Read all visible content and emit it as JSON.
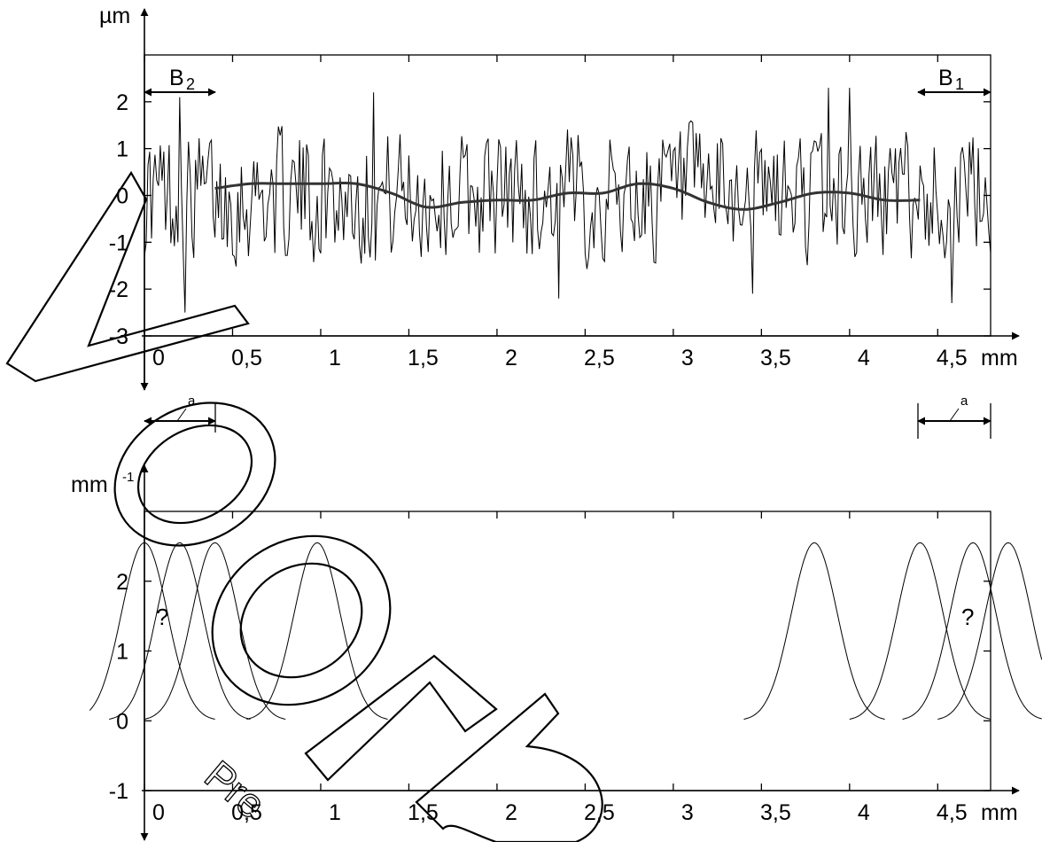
{
  "colors": {
    "ink": "#000000",
    "background": "#ffffff"
  },
  "watermark": {
    "text": "VorPreview",
    "style": "outlined-letters-diagonal"
  },
  "chart_data": [
    {
      "type": "line",
      "name": "surface-profile",
      "xlabel": "mm",
      "ylabel": "µm",
      "xlim": [
        0,
        4.8
      ],
      "ylim": [
        -3,
        3
      ],
      "x_ticks": [
        0,
        0.5,
        1,
        1.5,
        2,
        2.5,
        3,
        3.5,
        4,
        4.5
      ],
      "x_tick_labels": [
        "0",
        "0,5",
        "1",
        "1,5",
        "2",
        "2,5",
        "3",
        "3,5",
        "4",
        "4,5"
      ],
      "y_ticks": [
        -3,
        -2,
        -1,
        0,
        1,
        2
      ],
      "y_tick_labels": [
        "-3",
        "-2",
        "-1",
        "0",
        "1",
        "2"
      ],
      "profile": {
        "x_range": [
          0,
          4.8
        ],
        "sample_count": 480,
        "typical_amplitude": [
          -1.5,
          1.5
        ],
        "extreme_points": [
          {
            "x": 0.2,
            "y": 2.1
          },
          {
            "x": 0.23,
            "y": -2.5
          },
          {
            "x": 1.3,
            "y": 2.2
          },
          {
            "x": 2.35,
            "y": -2.2
          },
          {
            "x": 3.45,
            "y": -2.1
          },
          {
            "x": 3.88,
            "y": 2.3
          },
          {
            "x": 4.0,
            "y": 2.3
          },
          {
            "x": 4.58,
            "y": -2.3
          }
        ]
      },
      "mean_line": {
        "x": [
          0.4,
          0.6,
          0.8,
          1.0,
          1.2,
          1.4,
          1.6,
          1.8,
          2.0,
          2.2,
          2.4,
          2.6,
          2.8,
          3.0,
          3.2,
          3.4,
          3.6,
          3.8,
          4.0,
          4.2,
          4.4
        ],
        "y": [
          0.15,
          0.25,
          0.25,
          0.25,
          0.25,
          0.05,
          -0.25,
          -0.15,
          -0.1,
          -0.1,
          0.05,
          0.05,
          0.25,
          0.15,
          -0.15,
          -0.3,
          -0.15,
          0.05,
          0.05,
          -0.1,
          -0.1
        ]
      },
      "annotations": [
        {
          "label": "B",
          "subscript": "2",
          "x_from": 0,
          "x_to": 0.4,
          "y": 2.15,
          "position": "top-left"
        },
        {
          "label": "B",
          "subscript": "1",
          "x_from": 4.4,
          "x_to": 4.8,
          "y": 2.15,
          "position": "top-right"
        }
      ]
    },
    {
      "type": "line",
      "name": "weighting-functions",
      "xlabel": "mm",
      "ylabel": "mm",
      "ylabel_superscript": "-1",
      "xlim": [
        0,
        4.8
      ],
      "ylim": [
        -1,
        3
      ],
      "x_ticks": [
        0,
        0.5,
        1,
        1.5,
        2,
        2.5,
        3,
        3.5,
        4,
        4.5
      ],
      "x_tick_labels": [
        "0",
        "0,5",
        "1",
        "1,5",
        "2",
        "2,5",
        "3",
        "3,5",
        "4",
        "4,5"
      ],
      "y_ticks": [
        -1,
        0,
        1,
        2
      ],
      "y_tick_labels": [
        "-1",
        "0",
        "1",
        "2"
      ],
      "gaussian_peak": 2.55,
      "gaussian_sigma": 0.13,
      "gaussian_centers": [
        0,
        0.2,
        0.4,
        0.98,
        3.8,
        4.4,
        4.7,
        4.9
      ],
      "curve_half_span": 0.4,
      "marks": [
        {
          "text": "?",
          "x": 0.1,
          "y": 1.55
        },
        {
          "text": "?",
          "x": 4.7,
          "y": 1.55
        }
      ],
      "span_annotations": [
        {
          "label": "a",
          "x_from": 0,
          "x_to": 0.4
        },
        {
          "label": "a",
          "x_from": 4.4,
          "x_to": 4.8
        }
      ]
    }
  ]
}
